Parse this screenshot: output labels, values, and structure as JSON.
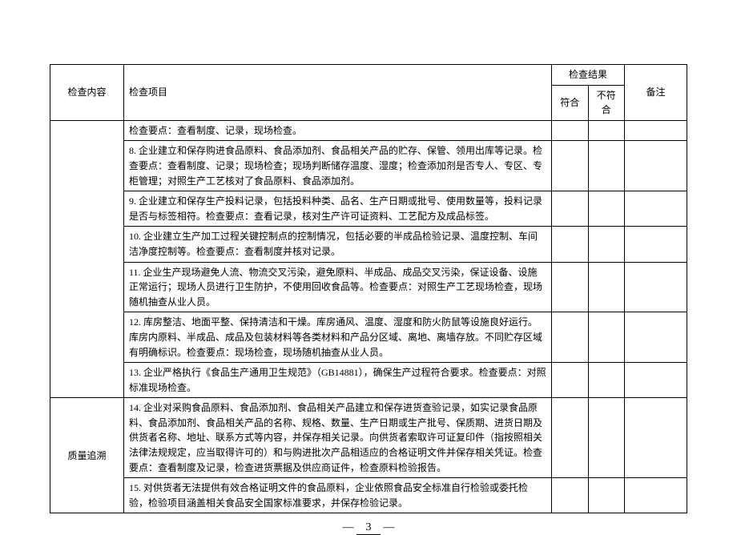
{
  "headers": {
    "col1": "检查内容",
    "col2": "检查项目",
    "col_result": "检查结果",
    "col3": "符合",
    "col4": "不符合",
    "col5": "备注"
  },
  "rows": [
    {
      "col1": "",
      "rowspan": 7,
      "items": [
        "检查要点：查看制度、记录，现场检查。",
        "8. 企业建立和保存购进食品原料、食品添加剂、食品相关产品的贮存、保管、领用出库等记录。检查要点：查看制度、记录；现场检查；现场判断储存温度、湿度；检查添加剂是否专人、专区、专柜管理；对照生产工艺核对了食品原料、食品添加剂。",
        "9. 企业建立和保存生产投料记录，包括投料种类、品名、生产日期或批号、使用数量等，投料记录是否与标签相符。检查要点：查看记录，核对生产许可证资料、工艺配方及成品标签。",
        "10. 企业建立生产加工过程关键控制点的控制情况，包括必要的半成品检验记录、温度控制、车间洁净度控制等。检查要点：查看制度并核对记录。",
        "11. 企业生产现场避免人流、物流交叉污染，避免原料、半成品、成品交叉污染，保证设备、设施正常运行；现场人员进行卫生防护，不使用回收食品等。检查要点：对照生产工艺现场检查，现场随机抽查从业人员。",
        "12. 库房整洁、地面平整、保持清洁和干燥。库房通风、温度、湿度和防火防鼠等设施良好运行。库房内原料、半成品、成品及包装材料等各类材料和产品分区域、离地、离墙存放。不同贮存区域有明确标识。检查要点：现场检查，现场随机抽查从业人员。",
        "13. 企业严格执行《食品生产通用卫生规范》（GB14881），确保生产过程符合要求。检查要点：对照标准现场检查。"
      ]
    },
    {
      "col1": "质量追溯",
      "rowspan": 2,
      "items": [
        "14. 企业对采购食品原料、食品添加剂、食品相关产品建立和保存进货查验记录，如实记录食品原料、食品添加剂、食品相关产品的名称、规格、数量、生产日期或生产批号、保质期、进货日期及供货者名称、地址、联系方式等内容，并保存相关记录。向供货者索取许可证复印件（指按照相关法律法规规定，应当取得许可的）和与购进批次产品相适应的合格证明文件并保存相关凭证。检查要点：查看制度及记录，检查进货票据及供应商证件，检查原料检验报告。",
        "15. 对供货者无法提供有效合格证明文件的食品原料，企业依照食品安全标准自行检验或委托检验，检验项目涵盖相关食品安全国家标准要求，并保存检验记录。"
      ]
    }
  ],
  "page_number": "3"
}
